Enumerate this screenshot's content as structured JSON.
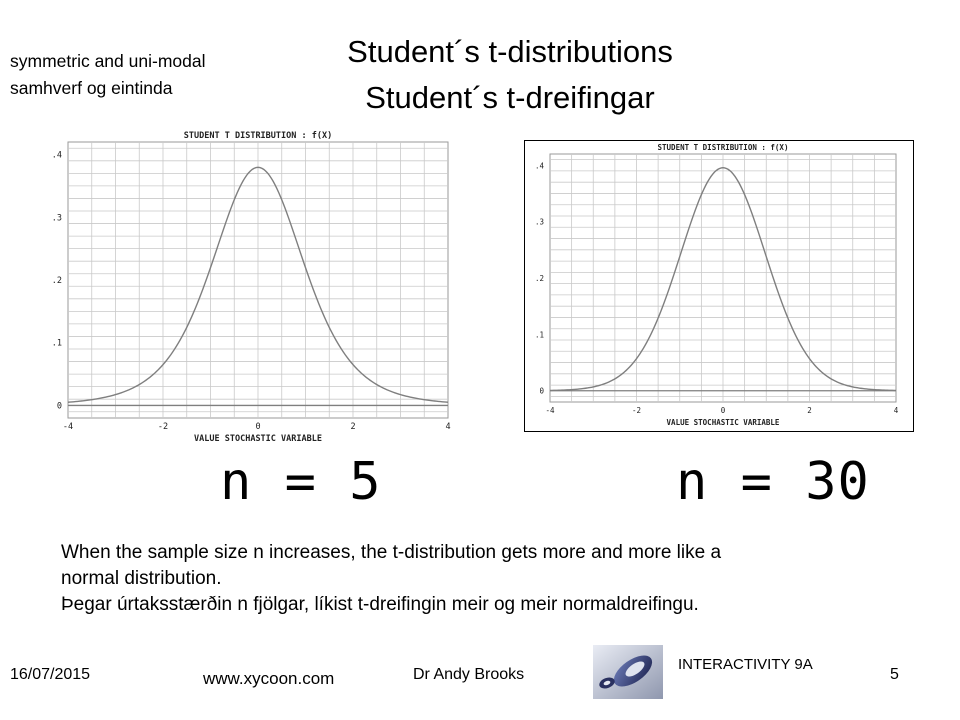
{
  "slide": {
    "title_line1": "Student´s t-distributions",
    "title_line2": "Student´s t-dreifingar",
    "note_line1": "symmetric and uni-modal",
    "note_line2": "samhverf og eintinda",
    "description_line1": "When the sample size n increases, the t-distribution gets more and more like a",
    "description_line2": "normal distribution.",
    "description_line3": "Þegar úrtaksstærðin n fjölgar, líkist t-dreifingin meir og meir normaldreifingu.",
    "footer": {
      "date": "16/07/2015",
      "website": "www.xycoon.com",
      "author": "Dr Andy Brooks",
      "course": "INTERACTIVITY 9A",
      "page": "5"
    },
    "logo_icon": "xycoon-logo-icon"
  },
  "chart_data": [
    {
      "type": "line",
      "title": "STUDENT T DISTRIBUTION : f(X)",
      "xlabel": "VALUE STOCHASTIC VARIABLE",
      "ylabel": "",
      "xlim": [
        -4,
        4
      ],
      "ylim": [
        -0.02,
        0.42
      ],
      "xticks": [
        "-4",
        "-2",
        "0",
        "2",
        "4"
      ],
      "yticks": [
        "0",
        ".1",
        ".2",
        ".3",
        ".4"
      ],
      "grid": true,
      "dof": 5,
      "sample_label": "n = 5",
      "series": [
        {
          "x": [
            -4,
            -3.5,
            -3,
            -2.5,
            -2,
            -1.5,
            -1,
            -0.5,
            0,
            0.5,
            1,
            1.5,
            2,
            2.5,
            3,
            3.5,
            4
          ],
          "y": [
            0.005,
            0.009,
            0.017,
            0.034,
            0.065,
            0.124,
            0.22,
            0.32,
            0.38,
            0.32,
            0.22,
            0.124,
            0.065,
            0.034,
            0.017,
            0.009,
            0.005
          ]
        }
      ],
      "line_color": "#7f7f7f",
      "grid_color": "#c9c9c9"
    },
    {
      "type": "line",
      "title": "STUDENT T DISTRIBUTION : f(X)",
      "xlabel": "VALUE STOCHASTIC VARIABLE",
      "ylabel": "",
      "xlim": [
        -4,
        4
      ],
      "ylim": [
        -0.02,
        0.42
      ],
      "xticks": [
        "-4",
        "-2",
        "0",
        "2",
        "4"
      ],
      "yticks": [
        "0",
        ".1",
        ".2",
        ".3",
        ".4"
      ],
      "grid": true,
      "dof": 30,
      "sample_label": "n = 30",
      "series": [
        {
          "x": [
            -4,
            -3.5,
            -3,
            -2.5,
            -2,
            -1.5,
            -1,
            -0.5,
            0,
            0.5,
            1,
            1.5,
            2,
            2.5,
            3,
            3.5,
            4
          ],
          "y": [
            0.0002,
            0.001,
            0.005,
            0.019,
            0.056,
            0.131,
            0.24,
            0.349,
            0.396,
            0.349,
            0.24,
            0.131,
            0.056,
            0.019,
            0.005,
            0.001,
            0.0002
          ]
        }
      ],
      "line_color": "#7f7f7f",
      "grid_color": "#c9c9c9"
    }
  ]
}
